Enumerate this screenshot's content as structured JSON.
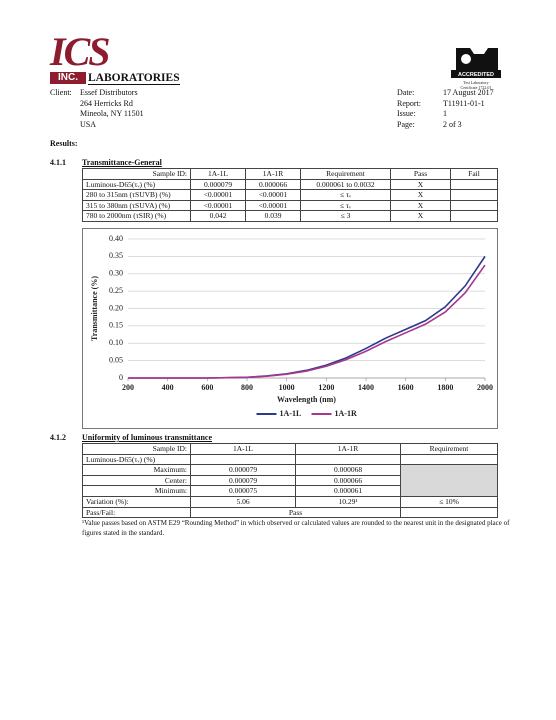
{
  "header": {
    "logo_main": "ICS",
    "logo_reg": "®",
    "logo_inc": "INC.",
    "logo_labs": "LABORATORIES",
    "badge": {
      "accredited": "ACCREDITED",
      "line1": "Test Laboratory",
      "line2": "Certificate 1722.01"
    }
  },
  "client": {
    "label": "Client:",
    "lines": [
      "Essef Distributors",
      "264 Herricks Rd",
      "Mineola, NY 11501",
      "USA"
    ]
  },
  "report_info": {
    "rows": [
      [
        "Date:",
        "17 August 2017"
      ],
      [
        "Report:",
        "T11911-01-1"
      ],
      [
        "Issue:",
        "1"
      ],
      [
        "Page:",
        "2 of 3"
      ]
    ]
  },
  "results_heading": "Results:",
  "section1": {
    "number": "4.1.1",
    "title": "Transmittance-General",
    "table": {
      "header": [
        "Sample ID:",
        "1A-1L",
        "1A-1R",
        "Requirement",
        "Pass",
        "Fail"
      ],
      "rows": [
        [
          "Luminous-D65(τᵥ) (%)",
          "0.000079",
          "0.000066",
          "0.000061 to 0.0032",
          "X"
        ],
        [
          "280 to 315nm (τSUVB) (%)",
          "<0.00001",
          "<0.00001",
          "≤ τᵥ",
          "X"
        ],
        [
          "315 to 380nm (τSUVA) (%)",
          "<0.00001",
          "<0.00001",
          "≤ τᵥ",
          "X"
        ],
        [
          "780 to 2000nm (τSIR) (%)",
          "0.042",
          "0.039",
          "≤ 3",
          "X"
        ]
      ]
    }
  },
  "chart_data": {
    "type": "line",
    "x_label": "Wavelength (nm)",
    "y_label": "Transmittance (%)",
    "x": [
      200,
      300,
      400,
      500,
      600,
      700,
      800,
      900,
      1000,
      1100,
      1200,
      1300,
      1400,
      1500,
      1600,
      1700,
      1800,
      1900,
      2000
    ],
    "series": [
      {
        "name": "1A-1L",
        "color": "#2b3a8c",
        "values": [
          0,
          0,
          0,
          0,
          0,
          0.001,
          0.002,
          0.006,
          0.012,
          0.022,
          0.037,
          0.058,
          0.085,
          0.115,
          0.14,
          0.165,
          0.205,
          0.265,
          0.35
        ]
      },
      {
        "name": "1A-1R",
        "color": "#a8358f",
        "values": [
          0,
          0,
          0,
          0,
          0,
          0.001,
          0.002,
          0.005,
          0.011,
          0.02,
          0.034,
          0.053,
          0.077,
          0.105,
          0.13,
          0.155,
          0.19,
          0.245,
          0.325
        ]
      }
    ],
    "xlim": [
      200,
      2000
    ],
    "xticks": [
      200,
      400,
      600,
      800,
      1000,
      1200,
      1400,
      1600,
      1800,
      2000
    ],
    "ylim": [
      0,
      0.4
    ],
    "yticks": [
      0,
      0.05,
      {
        "value": 0.1,
        "label": "0.10"
      },
      0.15,
      {
        "value": 0.2,
        "label": "0.20"
      },
      0.25,
      {
        "value": 0.3,
        "label": "0.30"
      },
      0.35,
      {
        "value": 0.4,
        "label": "0.40"
      }
    ],
    "grid": true,
    "legend": "bottom"
  },
  "section2": {
    "number": "4.1.2",
    "title": "Uniformity of luminous transmittance",
    "table": {
      "header": [
        "Sample ID:",
        "1A-1L",
        "1A-1R",
        "Requirement"
      ],
      "group": "Luminous-D65(τᵥ) (%)",
      "rows": [
        [
          "Maximum:",
          "0.000079",
          "0.000068"
        ],
        [
          "Center:",
          "0.000079",
          "0.000066"
        ],
        [
          "Minimum:",
          "0.000075",
          "0.000061"
        ]
      ],
      "variation": [
        "Variation (%):",
        "5.06",
        "10.29¹",
        "≤ 10%"
      ],
      "pass_fail": [
        "Pass/Fail:",
        "Pass"
      ]
    }
  },
  "footnote": "¹Value passes based on ASTM E29 “Rounding Method” in which observed or calculated values are rounded to the nearest unit in the designated place of figures stated in the standard."
}
